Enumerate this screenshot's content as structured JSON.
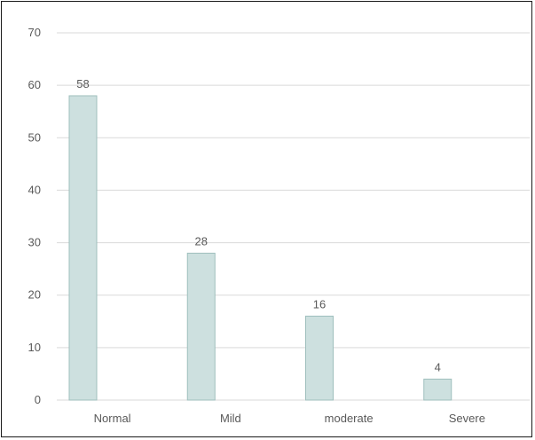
{
  "chart_data": {
    "type": "bar",
    "categories": [
      "Normal",
      "Mild",
      "moderate",
      "Severe"
    ],
    "values": [
      58,
      28,
      16,
      4
    ],
    "data_labels": [
      "58",
      "28",
      "16",
      "4"
    ],
    "title": "",
    "xlabel": "",
    "ylabel": "",
    "ylim": [
      0,
      70
    ],
    "yticks": [
      0,
      10,
      20,
      30,
      40,
      50,
      60,
      70
    ],
    "ytick_labels": [
      "0",
      "10",
      "20",
      "30",
      "40",
      "50",
      "60",
      "70"
    ],
    "grid": true,
    "legend": "none",
    "colors": {
      "bar_fill": "#cde0df",
      "bar_stroke": "#9fbfbd",
      "grid": "#d9d9d9",
      "text": "#595959"
    }
  }
}
